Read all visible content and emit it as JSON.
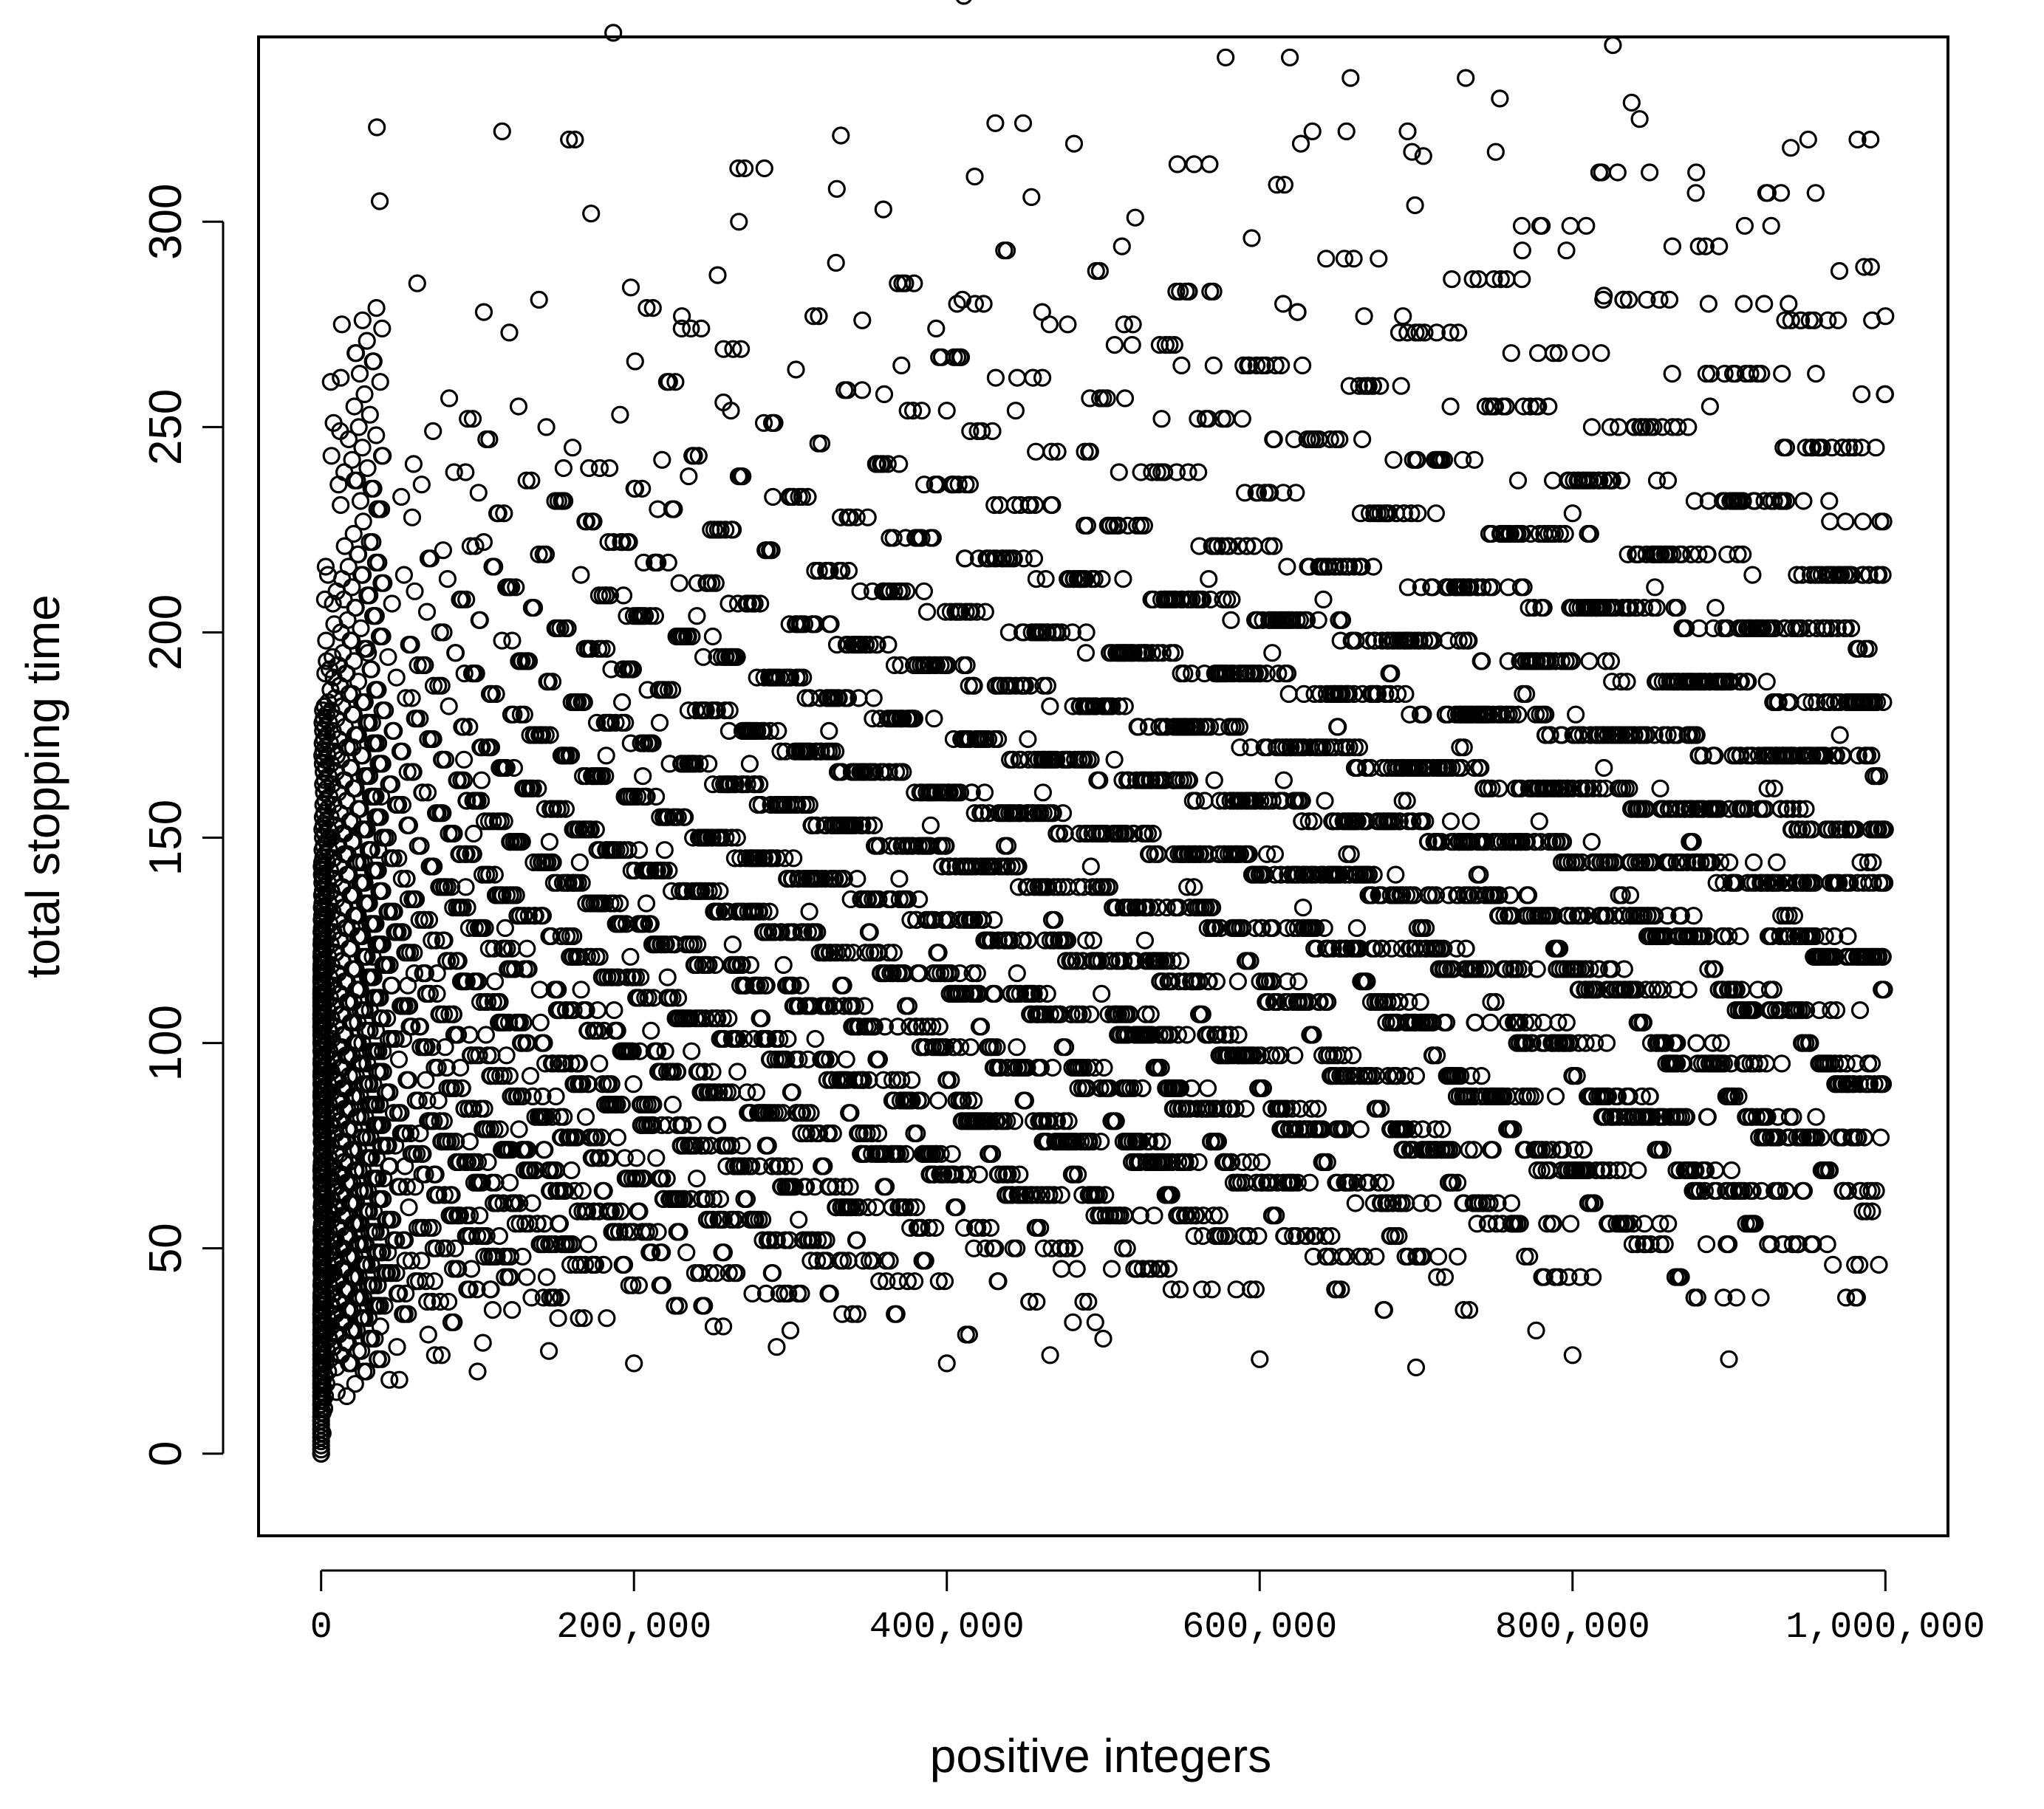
{
  "chart_data": {
    "type": "scatter",
    "title": "",
    "xlabel": "positive integers",
    "ylabel": "total stopping time",
    "xlim": [
      -40000,
      1040000
    ],
    "ylim": [
      -20,
      345
    ],
    "x_ticks": [
      0,
      200000,
      400000,
      600000,
      800000,
      1000000
    ],
    "x_tick_labels": [
      "0",
      "200,000",
      "400,000",
      "600,000",
      "800,000",
      "1,000,000"
    ],
    "y_ticks": [
      0,
      50,
      100,
      150,
      200,
      250,
      300
    ],
    "y_tick_labels": [
      "0",
      "50",
      "100",
      "150",
      "200",
      "250",
      "300"
    ],
    "grid": false,
    "legend": "none",
    "marker": "open-circle",
    "marker_color": "#000000",
    "x_range_of_points": [
      1,
      1000000
    ],
    "series": [
      {
        "values_sampled": [
          [
            837799,
            329
          ],
          [
            626331,
            319
          ],
          [
            939497,
            318
          ],
          [
            704623,
            316
          ],
          [
            910107,
            299
          ],
          [
            927003,
            299
          ],
          [
            511935,
            294
          ],
          [
            767903,
            293
          ],
          [
            796095,
            293
          ],
          [
            970599,
            288
          ],
          [
            546681,
            283
          ],
          [
            820022,
            282
          ],
          [
            410011,
            281
          ],
          [
            615017,
            280
          ],
          [
            886953,
            280
          ],
          [
            909469,
            280
          ],
          [
            922524,
            280
          ],
          [
            938143,
            280
          ],
          [
            230631,
            277
          ],
          [
            345947,
            276
          ],
          [
            460962,
            278
          ],
          [
            518921,
            275
          ],
          [
            666739,
            277
          ],
          [
            691571,
            277
          ],
          [
            1000000,
            277
          ],
          [
            393202,
            274
          ],
          [
            371004,
            265
          ],
          [
            431256,
            262
          ],
          [
            550000,
            265
          ],
          [
            262000,
            254
          ],
          [
            360000,
            258
          ],
          [
            400000,
            254
          ],
          [
            155000,
            240
          ],
          [
            218000,
            242
          ],
          [
            235000,
            238
          ],
          [
            104000,
            222
          ],
          [
            78000,
            220
          ],
          [
            53000,
            214
          ],
          [
            30000,
            195
          ],
          [
            20000,
            185
          ],
          [
            10000,
            170
          ],
          [
            5000,
            150
          ],
          [
            2000,
            130
          ],
          [
            1000,
            110
          ],
          [
            300000,
            30
          ],
          [
            500000,
            28
          ],
          [
            700000,
            21
          ],
          [
            900000,
            23
          ],
          [
            800000,
            24
          ],
          [
            600000,
            23
          ],
          [
            400000,
            22
          ],
          [
            200000,
            22
          ],
          [
            100000,
            20
          ],
          [
            50000,
            18
          ],
          [
            10000,
            15
          ],
          [
            1000,
            5
          ],
          [
            1,
            0
          ]
        ]
      }
    ]
  }
}
